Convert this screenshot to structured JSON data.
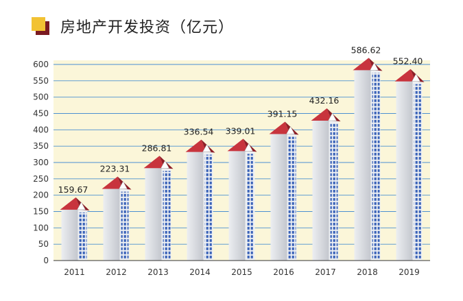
{
  "title": "房地产开发投资（亿元）",
  "colors": {
    "plot_bg": "#fbf6d9",
    "grid": "#4a8fd2",
    "roof": "#c8343d",
    "roof_dark": "#8e1e27",
    "building_front": "#d9dbe0",
    "building_side": "#eef0f3",
    "windows": "#3b63b8"
  },
  "chart_data": {
    "type": "bar",
    "title": "房地产开发投资（亿元）",
    "xlabel": "",
    "ylabel": "",
    "categories": [
      "2011",
      "2012",
      "2013",
      "2014",
      "2015",
      "2016",
      "2017",
      "2018",
      "2019"
    ],
    "values": [
      159.67,
      223.31,
      286.81,
      336.54,
      339.01,
      391.15,
      432.16,
      586.62,
      552.4
    ],
    "value_labels": [
      "159.67",
      "223.31",
      "286.81",
      "336.54",
      "339.01",
      "391.15",
      "432.16",
      "586.62",
      "552.40"
    ],
    "ylim": [
      0,
      600
    ],
    "yticks": [
      "0",
      "50",
      "100",
      "150",
      "200",
      "250",
      "300",
      "350",
      "400",
      "450",
      "500",
      "550",
      "600"
    ],
    "grid": true,
    "legend": "none"
  }
}
